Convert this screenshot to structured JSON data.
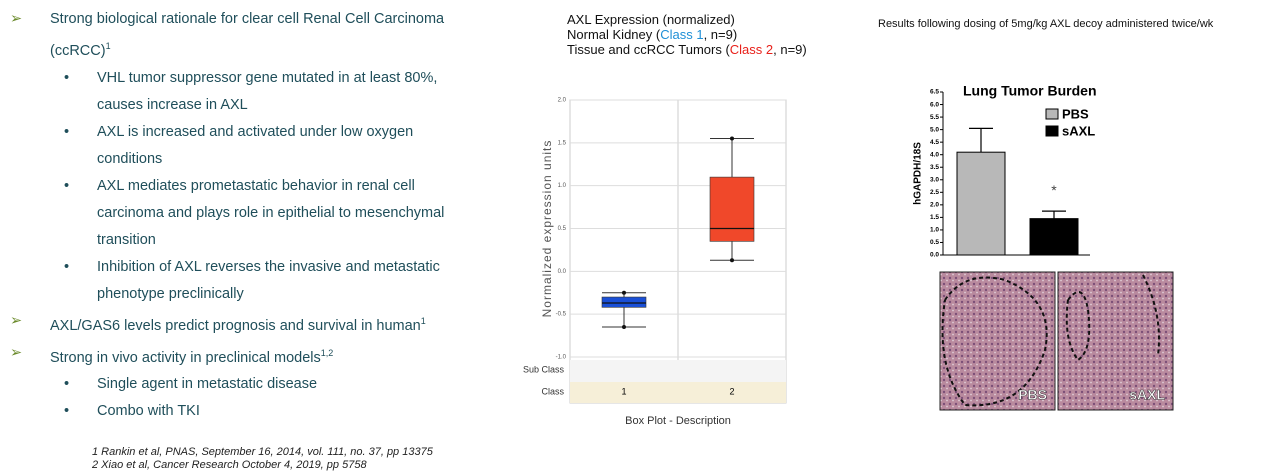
{
  "bullets": [
    {
      "level": 1,
      "text": "Strong biological rationale for clear cell Renal Cell Carcinoma (ccRCC)",
      "sup": "1"
    },
    {
      "level": 2,
      "text": "VHL tumor suppressor gene mutated in at least 80%, causes increase in AXL"
    },
    {
      "level": 2,
      "text": "AXL is increased and activated under low oxygen conditions"
    },
    {
      "level": 2,
      "text": "AXL mediates prometastatic behavior in renal cell carcinoma and plays role in epithelial to mesenchymal transition"
    },
    {
      "level": 2,
      "text": "Inhibition of AXL reverses the invasive and metastatic phenotype preclinically"
    },
    {
      "level": 1,
      "text": "AXL/GAS6 levels predict prognosis and survival in human",
      "sup": "1"
    },
    {
      "level": 1,
      "text": "Strong in vivo activity in preclinical models",
      "sup": "1,2"
    },
    {
      "level": 2,
      "text": "Single agent in metastatic disease"
    },
    {
      "level": 2,
      "text": "Combo with TKI"
    }
  ],
  "footnotes": [
    "1 Rankin et al, PNAS, September 16, 2014, vol. 111, no. 37, pp 13375",
    "2 Xiao et al, Cancer Research October 4, 2019, pp 5758"
  ],
  "results_title": "Results following dosing of 5mg/kg AXL decoy administered twice/wk",
  "image_labels": [
    "PBS",
    "sAXL"
  ],
  "chart_data": [
    {
      "type": "box",
      "header_lines": [
        [
          {
            "text": "AXL Expression (normalized)"
          }
        ],
        [
          {
            "text": "Normal Kidney ("
          },
          {
            "text": "Class 1",
            "color": "#1e8fd6"
          },
          {
            "text": ", n=9)"
          }
        ],
        [
          {
            "text": "Tissue and ccRCC Tumors ("
          },
          {
            "text": "Class 2",
            "color": "#e8201a"
          },
          {
            "text": ", n=9)"
          }
        ]
      ],
      "y_label": "Normalized expression units",
      "caption": "Box Plot - Description",
      "row_labels": [
        "Sub Class",
        "Class"
      ],
      "categories": [
        "1",
        "2"
      ],
      "colors": [
        "#1a4fd6",
        "#f0482a"
      ],
      "boxes": [
        {
          "min": -0.65,
          "q1": -0.42,
          "median": -0.37,
          "q3": -0.3,
          "max": -0.25
        },
        {
          "min": 0.13,
          "q1": 0.35,
          "median": 0.5,
          "q3": 1.1,
          "max": 1.55
        }
      ],
      "ylim": [
        -1.0,
        2.0
      ],
      "yticks": [
        {
          "value": -1,
          "label": "-1.0"
        },
        -0.5,
        {
          "value": 0,
          "label": "0.0"
        },
        0.5,
        {
          "value": 1,
          "label": "1.0"
        },
        1.5,
        {
          "value": 2,
          "label": "2.0"
        }
      ],
      "grid": true
    },
    {
      "type": "bar",
      "title": "Lung Tumor Burden",
      "y_label": "hGAPDH/18S",
      "categories": [
        "PBS",
        "sAXL"
      ],
      "values": [
        4.1,
        1.45
      ],
      "errors": [
        0.95,
        0.3
      ],
      "colors": [
        "#b8b8b8",
        "#000000"
      ],
      "annotation": "*",
      "ylim": [
        0,
        6.5
      ],
      "yticks": [
        {
          "value": 0,
          "label": "0.0"
        },
        0.5,
        {
          "value": 1,
          "label": "1.0"
        },
        1.5,
        {
          "value": 2,
          "label": "2.0"
        },
        2.5,
        {
          "value": 3,
          "label": "3.0"
        },
        3.5,
        {
          "value": 4,
          "label": "4.0"
        },
        4.5,
        {
          "value": 5,
          "label": "5.0"
        },
        5.5,
        {
          "value": 6,
          "label": "6.0"
        },
        6.5
      ]
    }
  ]
}
